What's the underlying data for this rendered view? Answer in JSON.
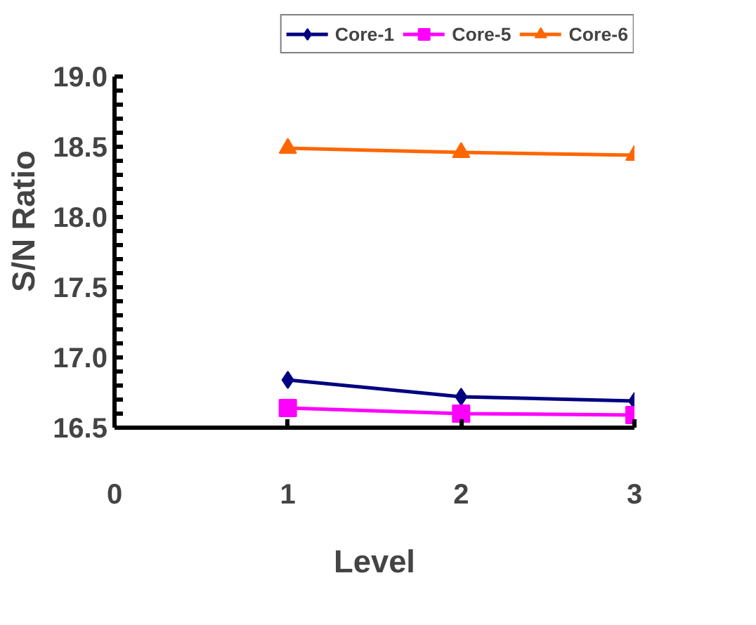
{
  "chart_data": {
    "type": "line",
    "xlabel": "Level",
    "ylabel": "S/N Ratio",
    "x": [
      1,
      2,
      3
    ],
    "series": [
      {
        "name": "Core-1",
        "color": "#000080",
        "marker": "diamond",
        "values": [
          16.84,
          16.72,
          16.69
        ]
      },
      {
        "name": "Core-5",
        "color": "#ff00ff",
        "marker": "square",
        "values": [
          16.64,
          16.6,
          16.59
        ]
      },
      {
        "name": "Core-6",
        "color": "#ff6600",
        "marker": "triangle",
        "values": [
          18.49,
          18.46,
          18.44
        ]
      }
    ],
    "xlim": [
      0,
      3
    ],
    "xticks": [
      0,
      1,
      2,
      3
    ],
    "ylim": [
      16.5,
      19.0
    ],
    "yticks": [
      {
        "value": 16.5,
        "label": "16.5"
      },
      {
        "value": 17.0,
        "label": "17.0"
      },
      {
        "value": 17.5,
        "label": "17.5"
      },
      {
        "value": 18.0,
        "label": "18.0"
      },
      {
        "value": 18.5,
        "label": "18.5"
      },
      {
        "value": 19.0,
        "label": "19.0"
      }
    ],
    "grid": false,
    "legend": "top"
  }
}
